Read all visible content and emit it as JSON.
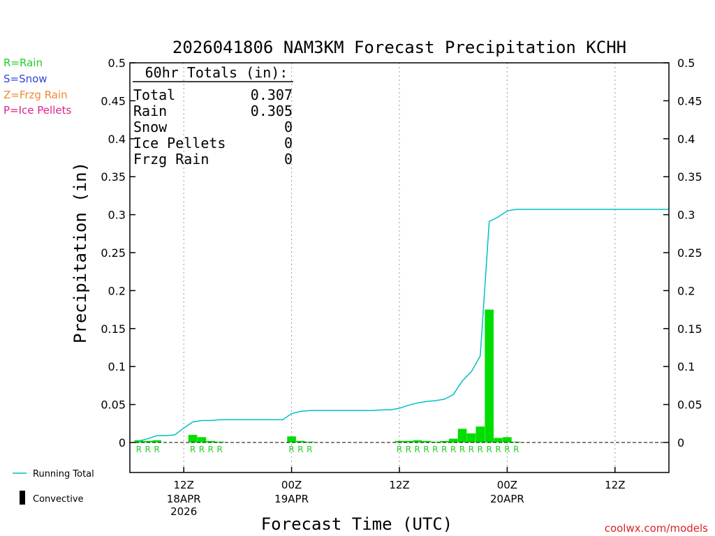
{
  "title": "2026041806 NAM3KM Forecast Precipitation KCHH",
  "xlabel": "Forecast Time (UTC)",
  "ylabel": "Precipitation (in)",
  "credit": "coolwx.com/models",
  "type_legend": [
    {
      "text": "R=Rain",
      "color": "#22cc22"
    },
    {
      "text": "S=Snow",
      "color": "#3344dd"
    },
    {
      "text": "Z=Frzg Rain",
      "color": "#ee8833"
    },
    {
      "text": "P=Ice Pellets",
      "color": "#dd2288"
    }
  ],
  "legend": {
    "running_total": "Running Total",
    "convective": "Convective"
  },
  "totals": {
    "header": "60hr Totals (in):",
    "rows": [
      {
        "label": "Total",
        "value": "0.307"
      },
      {
        "label": "Rain",
        "value": "0.305"
      },
      {
        "label": "Snow",
        "value": "0"
      },
      {
        "label": "Ice Pellets",
        "value": "0"
      },
      {
        "label": "Frzg Rain",
        "value": "0"
      }
    ]
  },
  "colors": {
    "bar": "#00dd00",
    "running_total": "#00c0c0",
    "rain_marker": "#22cc22",
    "axis": "#000000",
    "grid": "#999999",
    "credit": "#dd2222"
  },
  "chart_data": {
    "type": "bar",
    "ylim": [
      0,
      0.5
    ],
    "yticks": [
      0,
      0.05,
      0.1,
      0.15,
      0.2,
      0.25,
      0.3,
      0.35,
      0.4,
      0.45,
      0.5
    ],
    "ytick_labels": [
      "0",
      "0.05",
      "0.1",
      "0.15",
      "0.2",
      "0.25",
      "0.3",
      "0.35",
      "0.4",
      "0.45",
      "0.5"
    ],
    "x_unit": "forecast hour",
    "xlim": [
      6,
      66
    ],
    "xticks": [
      {
        "hour": 12,
        "label": "12Z",
        "date": "18APR",
        "year": "2026"
      },
      {
        "hour": 24,
        "label": "00Z",
        "date": "19APR",
        "year": ""
      },
      {
        "hour": 36,
        "label": "12Z",
        "date": "",
        "year": ""
      },
      {
        "hour": 48,
        "label": "00Z",
        "date": "20APR",
        "year": ""
      },
      {
        "hour": 60,
        "label": "12Z",
        "date": "",
        "year": ""
      }
    ],
    "grid": true,
    "bars": [
      {
        "hour": 7,
        "value": 0.003,
        "type": "R"
      },
      {
        "hour": 8,
        "value": 0.002,
        "type": "R"
      },
      {
        "hour": 9,
        "value": 0.003,
        "type": "R"
      },
      {
        "hour": 13,
        "value": 0.01,
        "type": "R"
      },
      {
        "hour": 14,
        "value": 0.007,
        "type": "R"
      },
      {
        "hour": 15,
        "value": 0.002,
        "type": "R"
      },
      {
        "hour": 16,
        "value": 0.001,
        "type": "R"
      },
      {
        "hour": 24,
        "value": 0.008,
        "type": "R"
      },
      {
        "hour": 25,
        "value": 0.002,
        "type": "R"
      },
      {
        "hour": 26,
        "value": 0.001,
        "type": "R"
      },
      {
        "hour": 36,
        "value": 0.002,
        "type": "R"
      },
      {
        "hour": 37,
        "value": 0.002,
        "type": "R"
      },
      {
        "hour": 38,
        "value": 0.003,
        "type": "R"
      },
      {
        "hour": 39,
        "value": 0.002,
        "type": "R"
      },
      {
        "hour": 40,
        "value": 0.001,
        "type": "R"
      },
      {
        "hour": 41,
        "value": 0.002,
        "type": "R"
      },
      {
        "hour": 42,
        "value": 0.005,
        "type": "R"
      },
      {
        "hour": 43,
        "value": 0.018,
        "type": "R"
      },
      {
        "hour": 44,
        "value": 0.012,
        "type": "R"
      },
      {
        "hour": 45,
        "value": 0.021,
        "type": "R"
      },
      {
        "hour": 46,
        "value": 0.175,
        "type": "R"
      },
      {
        "hour": 47,
        "value": 0.006,
        "type": "R"
      },
      {
        "hour": 48,
        "value": 0.007,
        "type": "R"
      },
      {
        "hour": 49,
        "value": 0.001,
        "type": "R"
      }
    ],
    "running_total": [
      [
        7,
        0.002
      ],
      [
        8,
        0.005
      ],
      [
        9,
        0.009
      ],
      [
        10,
        0.009
      ],
      [
        11,
        0.01
      ],
      [
        12,
        0.019
      ],
      [
        13,
        0.027
      ],
      [
        14,
        0.029
      ],
      [
        15,
        0.029
      ],
      [
        16,
        0.03
      ],
      [
        17,
        0.03
      ],
      [
        18,
        0.03
      ],
      [
        19,
        0.03
      ],
      [
        20,
        0.03
      ],
      [
        21,
        0.03
      ],
      [
        22,
        0.03
      ],
      [
        23,
        0.03
      ],
      [
        24,
        0.038
      ],
      [
        25,
        0.041
      ],
      [
        26,
        0.042
      ],
      [
        27,
        0.042
      ],
      [
        28,
        0.042
      ],
      [
        29,
        0.042
      ],
      [
        30,
        0.042
      ],
      [
        31,
        0.042
      ],
      [
        32,
        0.042
      ],
      [
        33,
        0.042
      ],
      [
        34,
        0.043
      ],
      [
        35,
        0.043
      ],
      [
        36,
        0.045
      ],
      [
        37,
        0.049
      ],
      [
        38,
        0.052
      ],
      [
        39,
        0.054
      ],
      [
        40,
        0.055
      ],
      [
        41,
        0.057
      ],
      [
        42,
        0.063
      ],
      [
        43,
        0.081
      ],
      [
        44,
        0.093
      ],
      [
        45,
        0.114
      ],
      [
        46,
        0.291
      ],
      [
        47,
        0.297
      ],
      [
        48,
        0.305
      ],
      [
        49,
        0.307
      ],
      [
        50,
        0.307
      ],
      [
        66,
        0.307
      ]
    ]
  }
}
